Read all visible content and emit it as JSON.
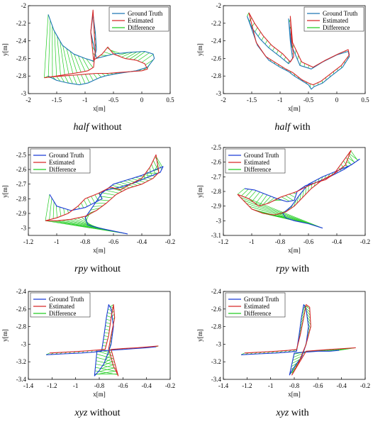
{
  "colors": {
    "ground_truth_light": "#1f77b4",
    "ground_truth_dark": "#1a3bd6",
    "estimated": "#d62728",
    "difference": "#22cc22"
  },
  "chart_data": [
    {
      "type": "line",
      "caption_seq": "half",
      "caption_mode": "without",
      "xlabel": "x[m]",
      "ylabel": "y[m]",
      "xlim": [
        -2,
        0.5
      ],
      "ylim": [
        -3,
        -2
      ],
      "xticks": [
        "-2",
        "-1.5",
        "-1",
        "-0.5",
        "0",
        "0.5"
      ],
      "yticks": [
        "-2",
        "-2.2",
        "-2.4",
        "-2.6",
        "-2.8",
        "-3"
      ],
      "legend_position": "top-right",
      "series": [
        {
          "name": "Ground Truth",
          "color": "#1f77b4",
          "x": [
            -1.65,
            -1.55,
            -1.4,
            -1.2,
            -1.0,
            -0.85,
            -0.8,
            -0.82,
            -0.86,
            -0.9,
            -0.8,
            -0.5,
            -0.2,
            0.05,
            0.2,
            0.22,
            0.1,
            -0.1,
            -0.3,
            -0.5,
            -0.65,
            -0.75,
            -0.85,
            -0.95,
            -1.1,
            -1.3,
            -1.5,
            -1.65
          ],
          "y": [
            -2.1,
            -2.28,
            -2.45,
            -2.55,
            -2.6,
            -2.63,
            -2.5,
            -2.3,
            -2.1,
            -2.3,
            -2.6,
            -2.55,
            -2.53,
            -2.52,
            -2.55,
            -2.6,
            -2.7,
            -2.74,
            -2.76,
            -2.78,
            -2.8,
            -2.82,
            -2.85,
            -2.88,
            -2.9,
            -2.88,
            -2.85,
            -2.8
          ]
        },
        {
          "name": "Estimated",
          "color": "#d62728",
          "x": [
            -1.72,
            -1.5,
            -1.3,
            -1.1,
            -0.95,
            -0.85,
            -0.82,
            -0.84,
            -0.86,
            -0.9,
            -0.85,
            -0.7,
            -0.6,
            -0.5,
            -0.3,
            -0.1,
            0.05,
            0.1,
            0.0,
            -0.2,
            -0.4,
            -0.6,
            -0.8,
            -1.0,
            -1.2,
            -1.4,
            -1.6,
            -1.72
          ],
          "y": [
            -2.82,
            -2.8,
            -2.78,
            -2.76,
            -2.74,
            -2.7,
            -2.5,
            -2.3,
            -2.05,
            -2.3,
            -2.62,
            -2.55,
            -2.47,
            -2.55,
            -2.6,
            -2.62,
            -2.66,
            -2.72,
            -2.74,
            -2.75,
            -2.76,
            -2.77,
            -2.77,
            -2.78,
            -2.79,
            -2.8,
            -2.81,
            -2.82
          ]
        }
      ]
    },
    {
      "type": "line",
      "caption_seq": "half",
      "caption_mode": "with",
      "xlabel": "x[m]",
      "ylabel": "y[m]",
      "xlim": [
        -2,
        0.5
      ],
      "ylim": [
        -3,
        -2
      ],
      "xticks": [
        "-2",
        "-1.5",
        "-1",
        "-0.5",
        "0",
        "0.5"
      ],
      "yticks": [
        "-2",
        "-2.2",
        "-2.4",
        "-2.6",
        "-2.8",
        "-3"
      ],
      "legend_position": "top-right",
      "series": [
        {
          "name": "Ground Truth",
          "color": "#1f77b4",
          "x": [
            -1.58,
            -1.5,
            -1.35,
            -1.2,
            -1.0,
            -0.85,
            -0.78,
            -0.82,
            -0.85,
            -0.8,
            -0.65,
            -0.45,
            -0.25,
            0.0,
            0.2,
            0.22,
            0.1,
            -0.1,
            -0.25,
            -0.4,
            -0.45,
            -0.5,
            -0.6,
            -0.75,
            -0.85,
            -1.0,
            -1.2,
            -1.4,
            -1.58
          ],
          "y": [
            -2.12,
            -2.25,
            -2.38,
            -2.48,
            -2.58,
            -2.66,
            -2.6,
            -2.4,
            -2.15,
            -2.45,
            -2.68,
            -2.72,
            -2.64,
            -2.56,
            -2.52,
            -2.58,
            -2.7,
            -2.8,
            -2.88,
            -2.92,
            -2.95,
            -2.9,
            -2.86,
            -2.8,
            -2.75,
            -2.7,
            -2.62,
            -2.45,
            -2.12
          ]
        },
        {
          "name": "Estimated",
          "color": "#d62728",
          "x": [
            -1.55,
            -1.45,
            -1.3,
            -1.15,
            -0.95,
            -0.82,
            -0.76,
            -0.8,
            -0.82,
            -0.78,
            -0.62,
            -0.42,
            -0.2,
            0.02,
            0.2,
            0.22,
            0.08,
            -0.12,
            -0.28,
            -0.42,
            -0.5,
            -0.62,
            -0.78,
            -0.9,
            -1.05,
            -1.25,
            -1.42,
            -1.55
          ],
          "y": [
            -2.08,
            -2.2,
            -2.34,
            -2.45,
            -2.55,
            -2.64,
            -2.58,
            -2.38,
            -2.12,
            -2.42,
            -2.64,
            -2.7,
            -2.62,
            -2.55,
            -2.5,
            -2.56,
            -2.68,
            -2.78,
            -2.86,
            -2.9,
            -2.88,
            -2.84,
            -2.76,
            -2.72,
            -2.66,
            -2.58,
            -2.42,
            -2.08
          ]
        }
      ]
    },
    {
      "type": "line",
      "caption_seq": "rpy",
      "caption_mode": "without",
      "xlabel": "x[m]",
      "ylabel": "y[m]",
      "xlim": [
        -1.2,
        -0.2
      ],
      "ylim": [
        -3.05,
        -2.45
      ],
      "xticks": [
        "-1.2",
        "-1",
        "-0.8",
        "-0.6",
        "-0.4",
        "-0.2"
      ],
      "yticks": [
        "-2.5",
        "-2.6",
        "-2.7",
        "-2.8",
        "-2.9",
        "-3"
      ],
      "legend_position": "top-left",
      "series": [
        {
          "name": "Ground Truth",
          "color": "#1a3bd6",
          "x": [
            -1.05,
            -1.0,
            -0.9,
            -0.8,
            -0.72,
            -0.68,
            -0.7,
            -0.65,
            -0.55,
            -0.45,
            -0.35,
            -0.27,
            -0.25,
            -0.3,
            -0.4,
            -0.5,
            -0.6,
            -0.68,
            -0.75,
            -0.8,
            -0.78,
            -0.7,
            -0.6,
            -0.5
          ],
          "y": [
            -2.77,
            -2.85,
            -2.88,
            -2.86,
            -2.82,
            -2.8,
            -2.76,
            -2.74,
            -2.72,
            -2.69,
            -2.65,
            -2.62,
            -2.58,
            -2.6,
            -2.64,
            -2.67,
            -2.7,
            -2.76,
            -2.86,
            -2.93,
            -2.98,
            -3.0,
            -3.02,
            -3.04
          ]
        },
        {
          "name": "Estimated",
          "color": "#d62728",
          "x": [
            -1.08,
            -1.0,
            -0.92,
            -0.85,
            -0.8,
            -0.75,
            -0.7,
            -0.62,
            -0.55,
            -0.48,
            -0.4,
            -0.34,
            -0.3,
            -0.28,
            -0.32,
            -0.4,
            -0.5,
            -0.58,
            -0.65,
            -0.72,
            -0.8,
            -0.9,
            -1.0,
            -1.08
          ],
          "y": [
            -2.95,
            -2.93,
            -2.9,
            -2.85,
            -2.8,
            -2.78,
            -2.76,
            -2.72,
            -2.74,
            -2.7,
            -2.66,
            -2.58,
            -2.5,
            -2.62,
            -2.66,
            -2.7,
            -2.73,
            -2.77,
            -2.83,
            -2.88,
            -2.92,
            -2.94,
            -2.95,
            -2.95
          ]
        }
      ]
    },
    {
      "type": "line",
      "caption_seq": "rpy",
      "caption_mode": "with",
      "xlabel": "x[m]",
      "ylabel": "y[m]",
      "xlim": [
        -1.2,
        -0.2
      ],
      "ylim": [
        -3.1,
        -2.5
      ],
      "xticks": [
        "-1.2",
        "-1",
        "-0.8",
        "-0.6",
        "-0.4",
        "-0.2"
      ],
      "yticks": [
        "-2.5",
        "-2.6",
        "-2.7",
        "-2.8",
        "-2.9",
        "-3",
        "-3.1"
      ],
      "legend_position": "top-left",
      "series": [
        {
          "name": "Ground Truth",
          "color": "#1a3bd6",
          "x": [
            -1.05,
            -0.98,
            -0.9,
            -0.82,
            -0.75,
            -0.7,
            -0.68,
            -0.62,
            -0.55,
            -0.45,
            -0.35,
            -0.27,
            -0.24,
            -0.3,
            -0.4,
            -0.5,
            -0.6,
            -0.66,
            -0.72,
            -0.78,
            -0.76,
            -0.7,
            -0.6,
            -0.5
          ],
          "y": [
            -2.78,
            -2.79,
            -2.82,
            -2.85,
            -2.87,
            -2.86,
            -2.8,
            -2.76,
            -2.74,
            -2.7,
            -2.65,
            -2.6,
            -2.58,
            -2.62,
            -2.66,
            -2.7,
            -2.75,
            -2.82,
            -2.9,
            -2.95,
            -2.98,
            -3.0,
            -3.02,
            -3.05
          ]
        },
        {
          "name": "Estimated",
          "color": "#d62728",
          "x": [
            -1.1,
            -1.02,
            -0.95,
            -0.88,
            -0.8,
            -0.74,
            -0.68,
            -0.62,
            -0.55,
            -0.48,
            -0.42,
            -0.36,
            -0.3,
            -0.34,
            -0.42,
            -0.5,
            -0.58,
            -0.64,
            -0.7,
            -0.76,
            -0.84,
            -0.92,
            -1.0,
            -1.1
          ],
          "y": [
            -2.82,
            -2.85,
            -2.9,
            -2.88,
            -2.84,
            -2.82,
            -2.8,
            -2.77,
            -2.74,
            -2.72,
            -2.68,
            -2.6,
            -2.52,
            -2.62,
            -2.68,
            -2.72,
            -2.78,
            -2.84,
            -2.9,
            -2.94,
            -2.96,
            -2.95,
            -2.92,
            -2.82
          ]
        }
      ]
    },
    {
      "type": "line",
      "caption_seq": "xyz",
      "caption_mode": "without",
      "xlabel": "x[m]",
      "ylabel": "y[m]",
      "xlim": [
        -1.4,
        -0.2
      ],
      "ylim": [
        -3.4,
        -2.4
      ],
      "xticks": [
        "-1.4",
        "-1.2",
        "-1",
        "-0.8",
        "-0.6",
        "-0.4",
        "-0.2"
      ],
      "yticks": [
        "-2.4",
        "-2.6",
        "-2.8",
        "-3",
        "-3.2",
        "-3.4"
      ],
      "legend_position": "top-left",
      "series": [
        {
          "name": "Ground Truth",
          "color": "#1a3bd6",
          "x": [
            -1.25,
            -1.1,
            -0.95,
            -0.85,
            -0.78,
            -0.76,
            -0.74,
            -0.72,
            -0.7,
            -0.68,
            -0.7,
            -0.72,
            -0.74,
            -0.76,
            -0.8,
            -0.84,
            -0.82,
            -0.72,
            -0.6,
            -0.5,
            -0.4,
            -0.32
          ],
          "y": [
            -3.12,
            -3.11,
            -3.1,
            -3.09,
            -3.08,
            -2.9,
            -2.7,
            -2.55,
            -2.6,
            -2.8,
            -3.0,
            -3.08,
            -3.15,
            -3.22,
            -3.3,
            -3.36,
            -3.08,
            -3.07,
            -3.06,
            -3.05,
            -3.04,
            -3.03
          ]
        },
        {
          "name": "Estimated",
          "color": "#d62728",
          "x": [
            -1.22,
            -1.08,
            -0.95,
            -0.85,
            -0.75,
            -0.72,
            -0.7,
            -0.68,
            -0.67,
            -0.7,
            -0.72,
            -0.7,
            -0.68,
            -0.66,
            -0.64,
            -0.7,
            -0.6,
            -0.48,
            -0.38,
            -0.3
          ],
          "y": [
            -3.1,
            -3.09,
            -3.08,
            -3.07,
            -3.06,
            -2.9,
            -2.7,
            -2.55,
            -2.7,
            -2.9,
            -3.05,
            -3.15,
            -3.25,
            -3.3,
            -3.36,
            -3.06,
            -3.05,
            -3.04,
            -3.03,
            -3.02
          ]
        }
      ]
    },
    {
      "type": "line",
      "caption_seq": "xyz",
      "caption_mode": "with",
      "xlabel": "x[m]",
      "ylabel": "y[m]",
      "xlim": [
        -1.4,
        -0.2
      ],
      "ylim": [
        -3.4,
        -2.4
      ],
      "xticks": [
        "-1.4",
        "-1.2",
        "-1",
        "-0.8",
        "-0.6",
        "-0.4",
        "-0.2"
      ],
      "yticks": [
        "-2.4",
        "-2.6",
        "-2.8",
        "-3",
        "-3.2",
        "-3.4"
      ],
      "legend_position": "top-left",
      "series": [
        {
          "name": "Ground Truth",
          "color": "#1a3bd6",
          "x": [
            -1.25,
            -1.1,
            -0.95,
            -0.85,
            -0.78,
            -0.76,
            -0.74,
            -0.72,
            -0.7,
            -0.68,
            -0.7,
            -0.72,
            -0.74,
            -0.78,
            -0.82,
            -0.84,
            -0.8,
            -0.7,
            -0.6,
            -0.5,
            -0.42
          ],
          "y": [
            -3.12,
            -3.11,
            -3.1,
            -3.09,
            -3.08,
            -2.9,
            -2.7,
            -2.55,
            -2.6,
            -2.8,
            -3.0,
            -3.08,
            -3.15,
            -3.22,
            -3.3,
            -3.35,
            -3.1,
            -3.09,
            -3.08,
            -3.08,
            -3.07
          ]
        },
        {
          "name": "Estimated",
          "color": "#d62728",
          "x": [
            -1.22,
            -1.08,
            -0.95,
            -0.85,
            -0.78,
            -0.75,
            -0.72,
            -0.7,
            -0.67,
            -0.66,
            -0.7,
            -0.73,
            -0.76,
            -0.8,
            -0.82,
            -0.7,
            -0.6,
            -0.5,
            -0.38,
            -0.28
          ],
          "y": [
            -3.1,
            -3.09,
            -3.08,
            -3.07,
            -3.06,
            -2.9,
            -2.7,
            -2.55,
            -2.58,
            -2.8,
            -3.0,
            -3.1,
            -3.2,
            -3.3,
            -3.35,
            -3.08,
            -3.07,
            -3.06,
            -3.05,
            -3.04
          ]
        }
      ]
    }
  ],
  "difference_label": "Difference"
}
